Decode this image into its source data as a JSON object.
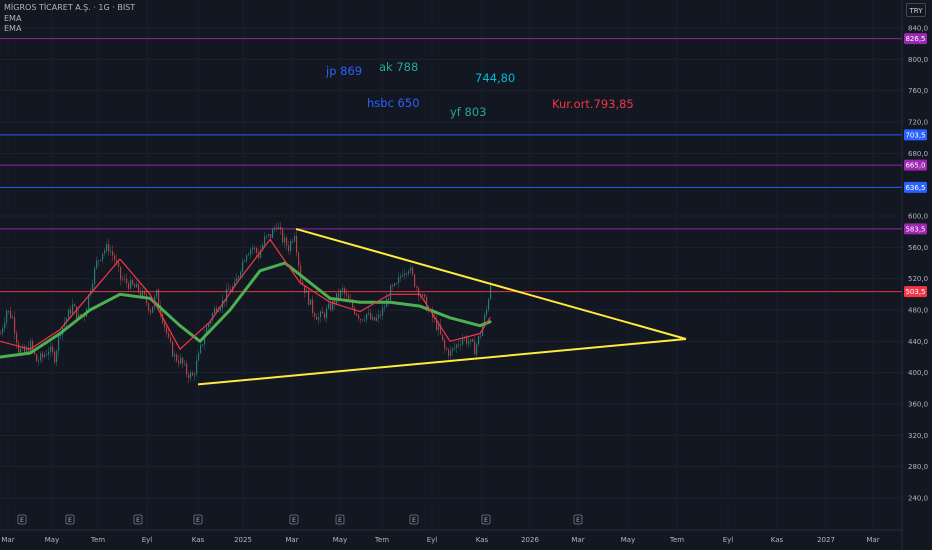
{
  "header": {
    "symbol": "MİGROS TİCARET A.Ş. · 1G · BIST",
    "indicator_1": "EMA",
    "indicator_2": "EMA",
    "currency": "TRY"
  },
  "annotations": [
    {
      "text": "jp 869",
      "color": "#2962ff"
    },
    {
      "text": "ak 788",
      "color": "#26a69a"
    },
    {
      "text": "744,80",
      "color": "#00bcd4"
    },
    {
      "text": "hsbc 650",
      "color": "#2962ff"
    },
    {
      "text": "yf 803",
      "color": "#26a69a"
    },
    {
      "text": "Kur.ort.793,85",
      "color": "#f23645"
    }
  ],
  "chart_data": {
    "type": "line",
    "title": "MİGROS TİCARET A.Ş. · 1G · BIST",
    "y_ticks": [
      "840,0",
      "800,0",
      "760,0",
      "720,0",
      "680,0",
      "600,0",
      "560,0",
      "520,0",
      "480,0",
      "440,0",
      "400,0",
      "360,0",
      "320,0",
      "280,0",
      "240,0"
    ],
    "x_ticks": [
      "Mar",
      "May",
      "Tem",
      "Eyl",
      "Kas",
      "2025",
      "Mar",
      "May",
      "Tem",
      "Eyl",
      "Kas",
      "2026",
      "Mar",
      "May",
      "Tem",
      "Eyl",
      "Kas",
      "2027",
      "Mar"
    ],
    "ylim": [
      210,
      860
    ],
    "horizontal_levels": [
      {
        "value": 826.5,
        "label": "826,5",
        "color": "#9c27b0"
      },
      {
        "value": 703.5,
        "label": "703,5",
        "color": "#2962ff"
      },
      {
        "value": 665.0,
        "label": "665,0",
        "color": "#9c27b0"
      },
      {
        "value": 636.5,
        "label": "636,5",
        "color": "#2962ff"
      },
      {
        "value": 583.5,
        "label": "583,5",
        "color": "#9c27b0"
      },
      {
        "value": 503.5,
        "label": "503,5",
        "color": "#f23645"
      }
    ],
    "last_price": 503.5,
    "price_series_approx": [
      [
        0,
        450
      ],
      [
        6,
        480
      ],
      [
        12,
        470
      ],
      [
        18,
        430
      ],
      [
        24,
        425
      ],
      [
        30,
        435
      ],
      [
        36,
        415
      ],
      [
        42,
        420
      ],
      [
        48,
        430
      ],
      [
        54,
        420
      ],
      [
        60,
        455
      ],
      [
        66,
        470
      ],
      [
        72,
        485
      ],
      [
        78,
        470
      ],
      [
        84,
        475
      ],
      [
        90,
        510
      ],
      [
        96,
        540
      ],
      [
        102,
        555
      ],
      [
        108,
        560
      ],
      [
        114,
        545
      ],
      [
        120,
        520
      ],
      [
        126,
        515
      ],
      [
        132,
        510
      ],
      [
        138,
        505
      ],
      [
        144,
        495
      ],
      [
        150,
        480
      ],
      [
        156,
        500
      ],
      [
        162,
        470
      ],
      [
        168,
        440
      ],
      [
        174,
        420
      ],
      [
        180,
        415
      ],
      [
        186,
        400
      ],
      [
        192,
        395
      ],
      [
        198,
        420
      ],
      [
        204,
        450
      ],
      [
        210,
        470
      ],
      [
        216,
        485
      ],
      [
        222,
        490
      ],
      [
        228,
        505
      ],
      [
        234,
        510
      ],
      [
        240,
        535
      ],
      [
        246,
        555
      ],
      [
        252,
        560
      ],
      [
        258,
        550
      ],
      [
        264,
        570
      ],
      [
        270,
        575
      ],
      [
        276,
        590
      ],
      [
        282,
        570
      ],
      [
        288,
        560
      ],
      [
        294,
        580
      ],
      [
        300,
        520
      ],
      [
        306,
        500
      ],
      [
        312,
        480
      ],
      [
        318,
        470
      ],
      [
        324,
        475
      ],
      [
        330,
        485
      ],
      [
        336,
        495
      ],
      [
        342,
        505
      ],
      [
        348,
        490
      ],
      [
        354,
        480
      ],
      [
        360,
        470
      ],
      [
        366,
        475
      ],
      [
        372,
        465
      ],
      [
        378,
        470
      ],
      [
        384,
        485
      ],
      [
        390,
        505
      ],
      [
        396,
        510
      ],
      [
        402,
        530
      ],
      [
        408,
        535
      ],
      [
        414,
        515
      ],
      [
        420,
        500
      ],
      [
        426,
        485
      ],
      [
        432,
        470
      ],
      [
        438,
        455
      ],
      [
        444,
        430
      ],
      [
        450,
        425
      ],
      [
        456,
        435
      ],
      [
        462,
        445
      ],
      [
        468,
        440
      ],
      [
        474,
        430
      ],
      [
        480,
        450
      ],
      [
        486,
        480
      ],
      [
        490,
        515
      ]
    ],
    "ema_fast_approx": [
      [
        0,
        440
      ],
      [
        30,
        430
      ],
      [
        60,
        455
      ],
      [
        90,
        500
      ],
      [
        120,
        545
      ],
      [
        150,
        500
      ],
      [
        180,
        430
      ],
      [
        210,
        465
      ],
      [
        240,
        520
      ],
      [
        270,
        570
      ],
      [
        300,
        515
      ],
      [
        330,
        490
      ],
      [
        360,
        478
      ],
      [
        390,
        500
      ],
      [
        420,
        500
      ],
      [
        450,
        440
      ],
      [
        480,
        450
      ],
      [
        490,
        470
      ]
    ],
    "ema_slow_approx": [
      [
        0,
        420
      ],
      [
        30,
        425
      ],
      [
        60,
        450
      ],
      [
        90,
        480
      ],
      [
        120,
        500
      ],
      [
        150,
        495
      ],
      [
        180,
        460
      ],
      [
        200,
        440
      ],
      [
        230,
        480
      ],
      [
        260,
        530
      ],
      [
        285,
        540
      ],
      [
        300,
        525
      ],
      [
        330,
        495
      ],
      [
        360,
        490
      ],
      [
        390,
        490
      ],
      [
        420,
        485
      ],
      [
        450,
        470
      ],
      [
        480,
        460
      ],
      [
        490,
        465
      ]
    ],
    "triangle": {
      "upper": [
        [
          296,
          583.5
        ],
        [
          686,
          443
        ]
      ],
      "lower": [
        [
          198,
          385
        ],
        [
          686,
          443
        ]
      ],
      "color": "#ffeb3b"
    },
    "event_markers": [
      {
        "x": 22,
        "label": "E"
      },
      {
        "x": 70,
        "label": "E"
      },
      {
        "x": 138,
        "label": "E"
      },
      {
        "x": 198,
        "label": "E"
      },
      {
        "x": 294,
        "label": "E"
      },
      {
        "x": 340,
        "label": "E"
      },
      {
        "x": 414,
        "label": "E"
      },
      {
        "x": 486,
        "label": "E"
      },
      {
        "x": 578,
        "label": "E"
      }
    ]
  }
}
